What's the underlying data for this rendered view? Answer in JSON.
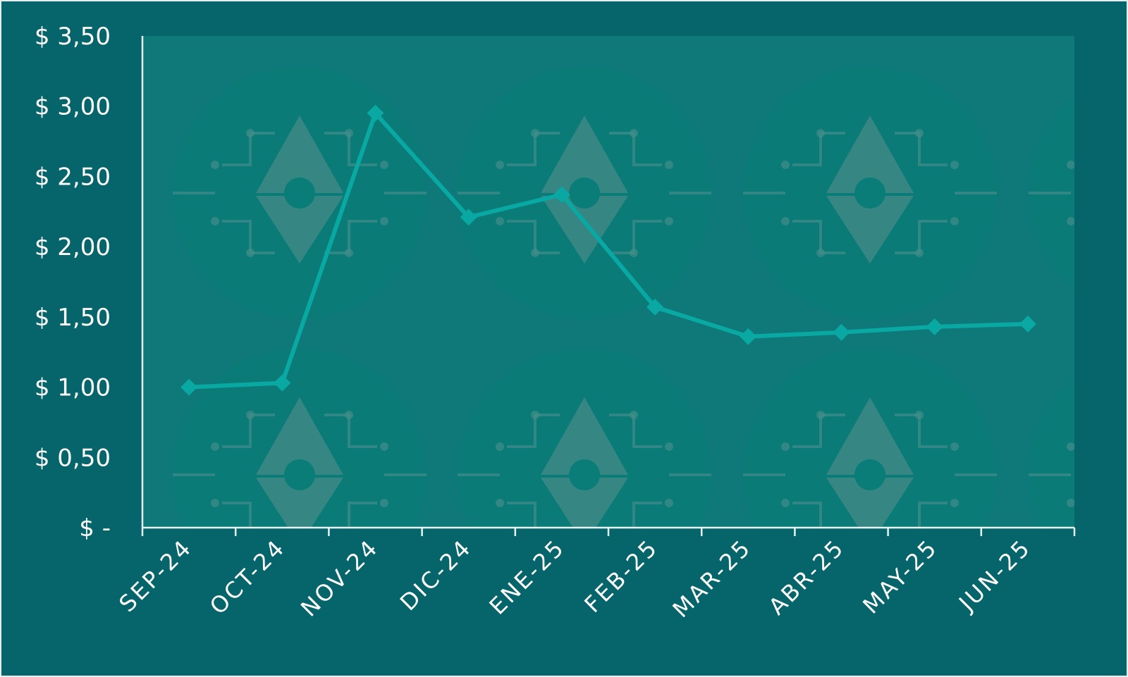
{
  "chart_data": {
    "type": "line",
    "title": "",
    "xlabel": "",
    "ylabel": "",
    "categories": [
      "SEP-24",
      "OCT-24",
      "NOV-24",
      "DIC-24",
      "ENE-25",
      "FEB-25",
      "MAR-25",
      "ABR-25",
      "MAY-25",
      "JUN-25"
    ],
    "series": [
      {
        "values": [
          1.0,
          1.03,
          2.95,
          2.21,
          2.37,
          1.57,
          1.36,
          1.39,
          1.43,
          1.45
        ]
      }
    ],
    "y_ticks": [
      {
        "value": 0,
        "label": "$ -"
      },
      {
        "value": 0.5,
        "label": "$ 0,50"
      },
      {
        "value": 1.0,
        "label": "$ 1,00"
      },
      {
        "value": 1.5,
        "label": "$ 1,50"
      },
      {
        "value": 2.0,
        "label": "$ 2,00"
      },
      {
        "value": 2.5,
        "label": "$ 2,50"
      },
      {
        "value": 3.0,
        "label": "$ 3,00"
      },
      {
        "value": 3.5,
        "label": "$ 3,50"
      }
    ],
    "ylim": [
      0,
      3.5
    ],
    "grid": false,
    "legend": "none",
    "colors": {
      "background": "#06656a",
      "plot_area": "#0f7878",
      "line": "#09a8a3",
      "axis": "#e6f4f3",
      "text": "#ffffff"
    }
  }
}
